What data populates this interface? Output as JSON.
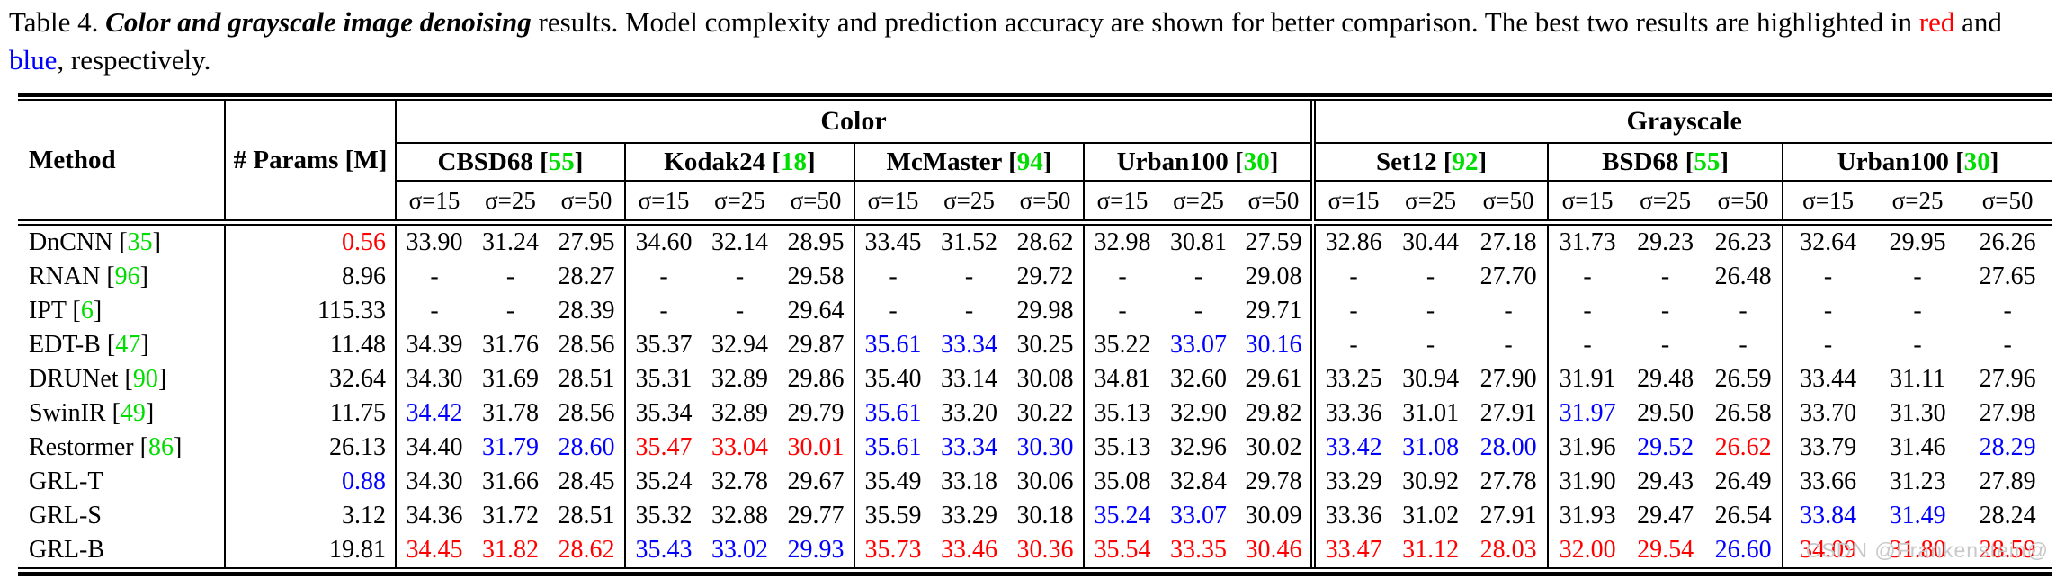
{
  "caption": {
    "label": "Table 4.",
    "emphasis": "Color and grayscale image denoising",
    "line1_rest": "results. Model complexity and prediction accuracy are shown for better comparison. The",
    "line2_pre": "best two results are highlighted in",
    "red_word": "red",
    "conj": "and",
    "blue_word": "blue",
    "line2_post": ", respectively."
  },
  "watermark": "CSDN @Frankenstein@",
  "colors": {
    "red": "#ff0000",
    "blue": "#0000ff",
    "green_ref": "#00dd00",
    "black": "#000000",
    "watermark_gray": "#c8c8c8"
  },
  "table": {
    "method_header": "Method",
    "params_header": "# Params [M]",
    "groups": [
      {
        "label": "Color",
        "dataset_count": 4
      },
      {
        "label": "Grayscale",
        "dataset_count": 3
      }
    ],
    "datasets": [
      {
        "name": "CBSD68",
        "ref": "55",
        "group": "color"
      },
      {
        "name": "Kodak24",
        "ref": "18",
        "group": "color"
      },
      {
        "name": "McMaster",
        "ref": "94",
        "group": "color"
      },
      {
        "name": "Urban100",
        "ref": "30",
        "group": "color"
      },
      {
        "name": "Set12",
        "ref": "92",
        "group": "grayscale"
      },
      {
        "name": "BSD68",
        "ref": "55",
        "group": "grayscale"
      },
      {
        "name": "Urban100",
        "ref": "30",
        "group": "grayscale"
      }
    ],
    "sigmas": [
      "σ=15",
      "σ=25",
      "σ=50"
    ],
    "rows": [
      {
        "method": "DnCNN",
        "ref": "35",
        "params": [
          "0.56",
          "r"
        ],
        "cells": [
          [
            "33.90",
            "k"
          ],
          [
            "31.24",
            "k"
          ],
          [
            "27.95",
            "k"
          ],
          [
            "34.60",
            "k"
          ],
          [
            "32.14",
            "k"
          ],
          [
            "28.95",
            "k"
          ],
          [
            "33.45",
            "k"
          ],
          [
            "31.52",
            "k"
          ],
          [
            "28.62",
            "k"
          ],
          [
            "32.98",
            "k"
          ],
          [
            "30.81",
            "k"
          ],
          [
            "27.59",
            "k"
          ],
          [
            "32.86",
            "k"
          ],
          [
            "30.44",
            "k"
          ],
          [
            "27.18",
            "k"
          ],
          [
            "31.73",
            "k"
          ],
          [
            "29.23",
            "k"
          ],
          [
            "26.23",
            "k"
          ],
          [
            "32.64",
            "k"
          ],
          [
            "29.95",
            "k"
          ],
          [
            "26.26",
            "k"
          ]
        ]
      },
      {
        "method": "RNAN",
        "ref": "96",
        "params": [
          "8.96",
          "k"
        ],
        "cells": [
          [
            "-",
            "k"
          ],
          [
            "-",
            "k"
          ],
          [
            "28.27",
            "k"
          ],
          [
            "-",
            "k"
          ],
          [
            "-",
            "k"
          ],
          [
            "29.58",
            "k"
          ],
          [
            "-",
            "k"
          ],
          [
            "-",
            "k"
          ],
          [
            "29.72",
            "k"
          ],
          [
            "-",
            "k"
          ],
          [
            "-",
            "k"
          ],
          [
            "29.08",
            "k"
          ],
          [
            "-",
            "k"
          ],
          [
            "-",
            "k"
          ],
          [
            "27.70",
            "k"
          ],
          [
            "-",
            "k"
          ],
          [
            "-",
            "k"
          ],
          [
            "26.48",
            "k"
          ],
          [
            "-",
            "k"
          ],
          [
            "-",
            "k"
          ],
          [
            "27.65",
            "k"
          ]
        ]
      },
      {
        "method": "IPT",
        "ref": "6",
        "params": [
          "115.33",
          "k"
        ],
        "cells": [
          [
            "-",
            "k"
          ],
          [
            "-",
            "k"
          ],
          [
            "28.39",
            "k"
          ],
          [
            "-",
            "k"
          ],
          [
            "-",
            "k"
          ],
          [
            "29.64",
            "k"
          ],
          [
            "-",
            "k"
          ],
          [
            "-",
            "k"
          ],
          [
            "29.98",
            "k"
          ],
          [
            "-",
            "k"
          ],
          [
            "-",
            "k"
          ],
          [
            "29.71",
            "k"
          ],
          [
            "-",
            "k"
          ],
          [
            "-",
            "k"
          ],
          [
            "-",
            "k"
          ],
          [
            "-",
            "k"
          ],
          [
            "-",
            "k"
          ],
          [
            "-",
            "k"
          ],
          [
            "-",
            "k"
          ],
          [
            "-",
            "k"
          ],
          [
            "-",
            "k"
          ]
        ]
      },
      {
        "method": "EDT-B",
        "ref": "47",
        "params": [
          "11.48",
          "k"
        ],
        "cells": [
          [
            "34.39",
            "k"
          ],
          [
            "31.76",
            "k"
          ],
          [
            "28.56",
            "k"
          ],
          [
            "35.37",
            "k"
          ],
          [
            "32.94",
            "k"
          ],
          [
            "29.87",
            "k"
          ],
          [
            "35.61",
            "b"
          ],
          [
            "33.34",
            "b"
          ],
          [
            "30.25",
            "k"
          ],
          [
            "35.22",
            "k"
          ],
          [
            "33.07",
            "b"
          ],
          [
            "30.16",
            "b"
          ],
          [
            "-",
            "k"
          ],
          [
            "-",
            "k"
          ],
          [
            "-",
            "k"
          ],
          [
            "-",
            "k"
          ],
          [
            "-",
            "k"
          ],
          [
            "-",
            "k"
          ],
          [
            "-",
            "k"
          ],
          [
            "-",
            "k"
          ],
          [
            "-",
            "k"
          ]
        ]
      },
      {
        "method": "DRUNet",
        "ref": "90",
        "params": [
          "32.64",
          "k"
        ],
        "cells": [
          [
            "34.30",
            "k"
          ],
          [
            "31.69",
            "k"
          ],
          [
            "28.51",
            "k"
          ],
          [
            "35.31",
            "k"
          ],
          [
            "32.89",
            "k"
          ],
          [
            "29.86",
            "k"
          ],
          [
            "35.40",
            "k"
          ],
          [
            "33.14",
            "k"
          ],
          [
            "30.08",
            "k"
          ],
          [
            "34.81",
            "k"
          ],
          [
            "32.60",
            "k"
          ],
          [
            "29.61",
            "k"
          ],
          [
            "33.25",
            "k"
          ],
          [
            "30.94",
            "k"
          ],
          [
            "27.90",
            "k"
          ],
          [
            "31.91",
            "k"
          ],
          [
            "29.48",
            "k"
          ],
          [
            "26.59",
            "k"
          ],
          [
            "33.44",
            "k"
          ],
          [
            "31.11",
            "k"
          ],
          [
            "27.96",
            "k"
          ]
        ]
      },
      {
        "method": "SwinIR",
        "ref": "49",
        "params": [
          "11.75",
          "k"
        ],
        "cells": [
          [
            "34.42",
            "b"
          ],
          [
            "31.78",
            "k"
          ],
          [
            "28.56",
            "k"
          ],
          [
            "35.34",
            "k"
          ],
          [
            "32.89",
            "k"
          ],
          [
            "29.79",
            "k"
          ],
          [
            "35.61",
            "b"
          ],
          [
            "33.20",
            "k"
          ],
          [
            "30.22",
            "k"
          ],
          [
            "35.13",
            "k"
          ],
          [
            "32.90",
            "k"
          ],
          [
            "29.82",
            "k"
          ],
          [
            "33.36",
            "k"
          ],
          [
            "31.01",
            "k"
          ],
          [
            "27.91",
            "k"
          ],
          [
            "31.97",
            "b"
          ],
          [
            "29.50",
            "k"
          ],
          [
            "26.58",
            "k"
          ],
          [
            "33.70",
            "k"
          ],
          [
            "31.30",
            "k"
          ],
          [
            "27.98",
            "k"
          ]
        ]
      },
      {
        "method": "Restormer",
        "ref": "86",
        "params": [
          "26.13",
          "k"
        ],
        "cells": [
          [
            "34.40",
            "k"
          ],
          [
            "31.79",
            "b"
          ],
          [
            "28.60",
            "b"
          ],
          [
            "35.47",
            "r"
          ],
          [
            "33.04",
            "r"
          ],
          [
            "30.01",
            "r"
          ],
          [
            "35.61",
            "b"
          ],
          [
            "33.34",
            "b"
          ],
          [
            "30.30",
            "b"
          ],
          [
            "35.13",
            "k"
          ],
          [
            "32.96",
            "k"
          ],
          [
            "30.02",
            "k"
          ],
          [
            "33.42",
            "b"
          ],
          [
            "31.08",
            "b"
          ],
          [
            "28.00",
            "b"
          ],
          [
            "31.96",
            "k"
          ],
          [
            "29.52",
            "b"
          ],
          [
            "26.62",
            "r"
          ],
          [
            "33.79",
            "k"
          ],
          [
            "31.46",
            "k"
          ],
          [
            "28.29",
            "b"
          ]
        ]
      },
      {
        "method": "GRL-T",
        "ref": "",
        "params": [
          "0.88",
          "b"
        ],
        "cells": [
          [
            "34.30",
            "k"
          ],
          [
            "31.66",
            "k"
          ],
          [
            "28.45",
            "k"
          ],
          [
            "35.24",
            "k"
          ],
          [
            "32.78",
            "k"
          ],
          [
            "29.67",
            "k"
          ],
          [
            "35.49",
            "k"
          ],
          [
            "33.18",
            "k"
          ],
          [
            "30.06",
            "k"
          ],
          [
            "35.08",
            "k"
          ],
          [
            "32.84",
            "k"
          ],
          [
            "29.78",
            "k"
          ],
          [
            "33.29",
            "k"
          ],
          [
            "30.92",
            "k"
          ],
          [
            "27.78",
            "k"
          ],
          [
            "31.90",
            "k"
          ],
          [
            "29.43",
            "k"
          ],
          [
            "26.49",
            "k"
          ],
          [
            "33.66",
            "k"
          ],
          [
            "31.23",
            "k"
          ],
          [
            "27.89",
            "k"
          ]
        ]
      },
      {
        "method": "GRL-S",
        "ref": "",
        "params": [
          "3.12",
          "k"
        ],
        "cells": [
          [
            "34.36",
            "k"
          ],
          [
            "31.72",
            "k"
          ],
          [
            "28.51",
            "k"
          ],
          [
            "35.32",
            "k"
          ],
          [
            "32.88",
            "k"
          ],
          [
            "29.77",
            "k"
          ],
          [
            "35.59",
            "k"
          ],
          [
            "33.29",
            "k"
          ],
          [
            "30.18",
            "k"
          ],
          [
            "35.24",
            "b"
          ],
          [
            "33.07",
            "b"
          ],
          [
            "30.09",
            "k"
          ],
          [
            "33.36",
            "k"
          ],
          [
            "31.02",
            "k"
          ],
          [
            "27.91",
            "k"
          ],
          [
            "31.93",
            "k"
          ],
          [
            "29.47",
            "k"
          ],
          [
            "26.54",
            "k"
          ],
          [
            "33.84",
            "b"
          ],
          [
            "31.49",
            "b"
          ],
          [
            "28.24",
            "k"
          ]
        ]
      },
      {
        "method": "GRL-B",
        "ref": "",
        "params": [
          "19.81",
          "k"
        ],
        "cells": [
          [
            "34.45",
            "r"
          ],
          [
            "31.82",
            "r"
          ],
          [
            "28.62",
            "r"
          ],
          [
            "35.43",
            "b"
          ],
          [
            "33.02",
            "b"
          ],
          [
            "29.93",
            "b"
          ],
          [
            "35.73",
            "r"
          ],
          [
            "33.46",
            "r"
          ],
          [
            "30.36",
            "r"
          ],
          [
            "35.54",
            "r"
          ],
          [
            "33.35",
            "r"
          ],
          [
            "30.46",
            "r"
          ],
          [
            "33.47",
            "r"
          ],
          [
            "31.12",
            "r"
          ],
          [
            "28.03",
            "r"
          ],
          [
            "32.00",
            "r"
          ],
          [
            "29.54",
            "r"
          ],
          [
            "26.60",
            "b"
          ],
          [
            "34.09",
            "r"
          ],
          [
            "31.80",
            "r"
          ],
          [
            "28.59",
            "r"
          ]
        ]
      }
    ]
  }
}
